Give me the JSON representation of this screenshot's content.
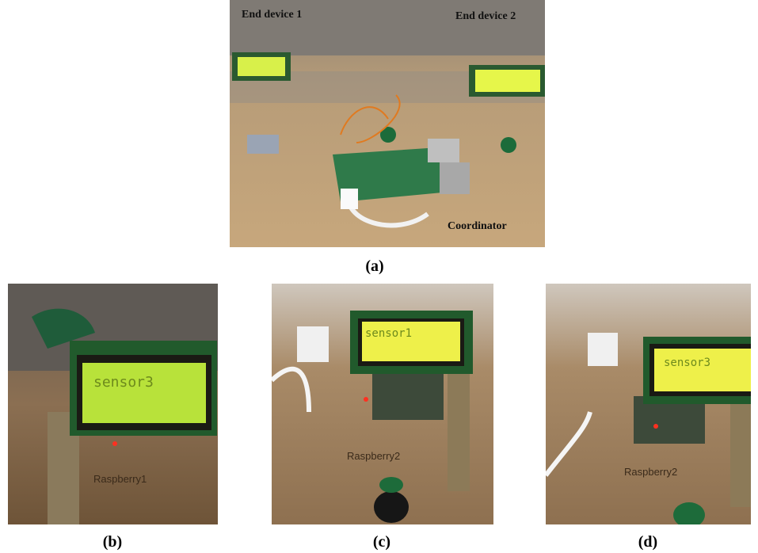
{
  "panels": [
    {
      "label": "(a)",
      "annotations": [
        "End device 1",
        "End device 2",
        "Coordinator"
      ]
    },
    {
      "label": "(b)",
      "lcd_text": "sensor3",
      "board_label": "Raspberry1"
    },
    {
      "label": "(c)",
      "lcd_text": "sensor1",
      "board_label": "Raspberry2"
    },
    {
      "label": "(d)",
      "lcd_text": "sensor3",
      "board_label": "Raspberry2"
    }
  ]
}
